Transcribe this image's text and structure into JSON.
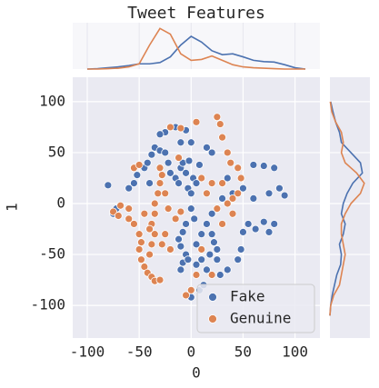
{
  "chart_data": [
    {
      "type": "scatter",
      "title": "Tweet Features",
      "x_label": "0",
      "y_label": "1",
      "xlim": [
        -114,
        124
      ],
      "ylim": [
        -132,
        124
      ],
      "xticks": [
        -100,
        -50,
        0,
        50,
        100
      ],
      "yticks": [
        -100,
        -50,
        0,
        50,
        100
      ],
      "grid": true,
      "legend": "lower right",
      "series": [
        {
          "name": "Fake",
          "color": "#4c72b0",
          "x": [
            -80,
            -75,
            -72,
            -60,
            -55,
            -52,
            -45,
            -42,
            -40,
            -38,
            -35,
            -30,
            -25,
            -22,
            -20,
            -15,
            -12,
            -10,
            -8,
            -5,
            -3,
            0,
            2,
            5,
            8,
            -2,
            0,
            3,
            -5,
            -8,
            -12,
            -10,
            -5,
            -8,
            -10,
            -3,
            5,
            10,
            15,
            20,
            20,
            22,
            25,
            18,
            10,
            5,
            15,
            0,
            8,
            12,
            28,
            35,
            45,
            48,
            50,
            55,
            62,
            70,
            75,
            80,
            60,
            70,
            80,
            85,
            90,
            75,
            60,
            50,
            40,
            30,
            35,
            20,
            15,
            -15,
            -25,
            -30,
            -5,
            0,
            -10,
            25
          ],
          "values": [
            18,
            -10,
            -5,
            15,
            20,
            28,
            35,
            40,
            20,
            48,
            55,
            52,
            50,
            40,
            30,
            25,
            20,
            35,
            40,
            30,
            15,
            10,
            25,
            20,
            38,
            42,
            -5,
            -15,
            -20,
            -28,
            -35,
            -42,
            -50,
            -58,
            -65,
            -55,
            -40,
            -30,
            -20,
            -10,
            -30,
            -38,
            -45,
            -50,
            -55,
            -60,
            -65,
            -92,
            -85,
            -80,
            -70,
            -65,
            -55,
            -45,
            -28,
            -20,
            -25,
            -18,
            -28,
            -20,
            38,
            37,
            35,
            15,
            8,
            10,
            5,
            15,
            10,
            5,
            25,
            50,
            55,
            75,
            70,
            68,
            72,
            60,
            60,
            -55
          ]
        },
        {
          "name": "Genuine",
          "color": "#dd8452",
          "x": [
            -75,
            -70,
            -68,
            -60,
            -55,
            -50,
            -48,
            -50,
            -48,
            -45,
            -42,
            -38,
            -35,
            -30,
            -40,
            -38,
            -35,
            -38,
            -35,
            -35,
            -32,
            -30,
            -28,
            -30,
            -25,
            -28,
            -20,
            -22,
            -25,
            -55,
            -50,
            -20,
            -10,
            5,
            25,
            28,
            30,
            35,
            38,
            45,
            48,
            45,
            40,
            35,
            25,
            15,
            10,
            20,
            40,
            30,
            10,
            5,
            20,
            -5,
            0,
            30,
            -40,
            -45,
            -60,
            -15,
            -10,
            -12
          ],
          "values": [
            -8,
            -12,
            -2,
            -15,
            -20,
            -30,
            -38,
            -45,
            -55,
            -62,
            -68,
            -72,
            -76,
            -75,
            -50,
            -40,
            -30,
            -20,
            -10,
            0,
            10,
            20,
            28,
            35,
            -30,
            -40,
            -45,
            -5,
            10,
            35,
            38,
            75,
            74,
            80,
            85,
            78,
            65,
            50,
            40,
            35,
            25,
            10,
            5,
            0,
            -5,
            10,
            25,
            20,
            -10,
            -20,
            -45,
            -70,
            -70,
            -90,
            -85,
            20,
            -25,
            -10,
            -5,
            -15,
            -8,
            45
          ]
        }
      ]
    },
    {
      "type": "line",
      "orientation": "horizontal",
      "ylim": [
        0,
        1
      ],
      "x": [
        -100,
        -90,
        -80,
        -70,
        -60,
        -50,
        -40,
        -30,
        -20,
        -10,
        0,
        10,
        20,
        30,
        40,
        50,
        60,
        70,
        80,
        90,
        100,
        110
      ],
      "series": [
        {
          "name": "Fake",
          "color": "#4c72b0",
          "values": [
            0,
            0.01,
            0.03,
            0.05,
            0.08,
            0.12,
            0.12,
            0.15,
            0.28,
            0.55,
            0.75,
            0.62,
            0.42,
            0.33,
            0.35,
            0.28,
            0.2,
            0.17,
            0.16,
            0.1,
            0.03,
            0
          ]
        },
        {
          "name": "Genuine",
          "color": "#dd8452",
          "values": [
            0,
            0,
            0.01,
            0.02,
            0.05,
            0.12,
            0.55,
            0.93,
            0.8,
            0.35,
            0.2,
            0.22,
            0.3,
            0.2,
            0.1,
            0.05,
            0.03,
            0.02,
            0.01,
            0,
            0,
            0
          ]
        }
      ]
    },
    {
      "type": "line",
      "orientation": "vertical",
      "xlim": [
        0,
        1
      ],
      "y": [
        100,
        90,
        80,
        70,
        60,
        50,
        40,
        30,
        20,
        10,
        0,
        -10,
        -20,
        -30,
        -40,
        -50,
        -60,
        -70,
        -80,
        -90,
        -100,
        -110
      ],
      "series": [
        {
          "name": "Fake",
          "color": "#4c72b0",
          "values": [
            0.02,
            0.08,
            0.15,
            0.25,
            0.3,
            0.55,
            0.8,
            0.85,
            0.6,
            0.45,
            0.35,
            0.3,
            0.4,
            0.35,
            0.25,
            0.3,
            0.28,
            0.18,
            0.12,
            0.06,
            0.02,
            0
          ]
        },
        {
          "name": "Genuine",
          "color": "#dd8452",
          "values": [
            0.01,
            0.05,
            0.15,
            0.3,
            0.35,
            0.3,
            0.4,
            0.7,
            0.9,
            0.8,
            0.55,
            0.4,
            0.3,
            0.3,
            0.35,
            0.4,
            0.35,
            0.3,
            0.25,
            0.1,
            0.02,
            0
          ]
        }
      ]
    }
  ]
}
